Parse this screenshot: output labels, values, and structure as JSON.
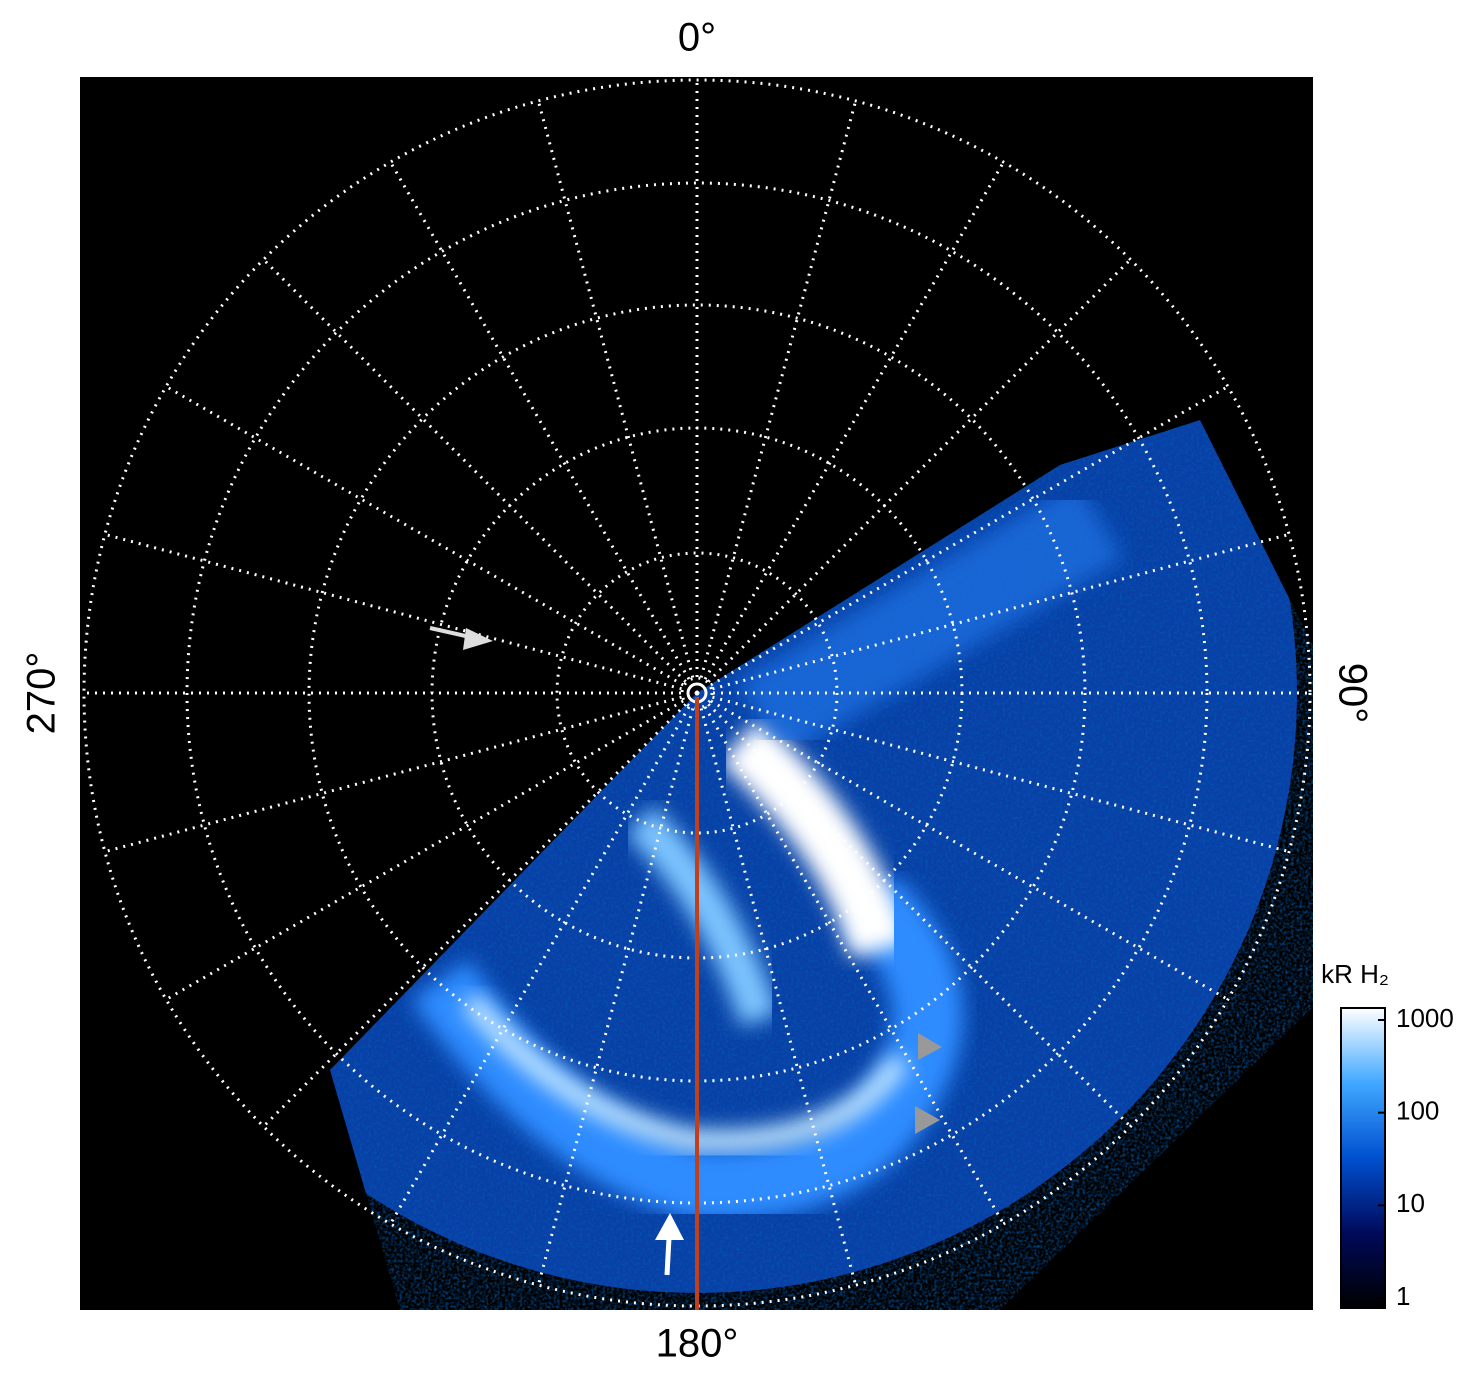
{
  "chart_data": {
    "type": "polar-image",
    "thetaticks": [
      {
        "value": 0,
        "label": "0°"
      },
      {
        "value": 90,
        "label": "90°"
      },
      {
        "value": 180,
        "label": "180°"
      },
      {
        "value": 270,
        "label": "270°"
      }
    ],
    "colorbar": {
      "label": "kR H₂",
      "lim": [
        1,
        1000
      ],
      "ticks": [
        1,
        10,
        100,
        1000
      ],
      "log": true,
      "colormap": [
        "#000000",
        "#000a5a",
        "#0050d0",
        "#40a8ff",
        "#ffffff"
      ]
    }
  }
}
